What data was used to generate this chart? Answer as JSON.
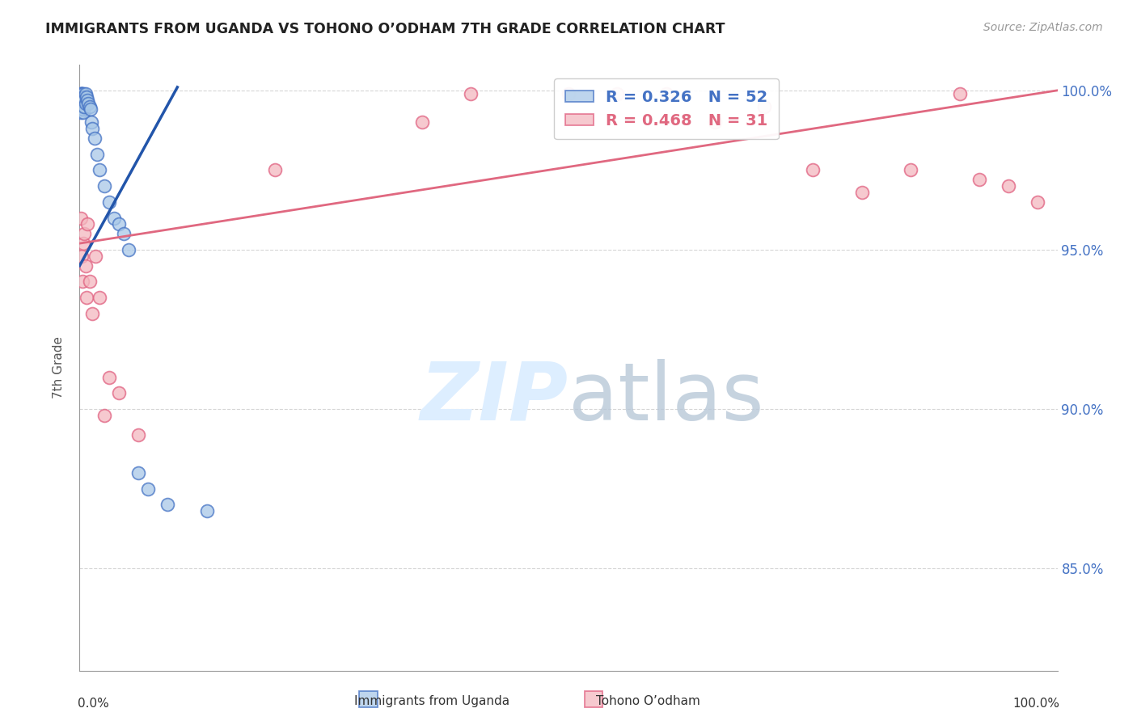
{
  "title": "IMMIGRANTS FROM UGANDA VS TOHONO O’ODHAM 7TH GRADE CORRELATION CHART",
  "source": "Source: ZipAtlas.com",
  "ylabel": "7th Grade",
  "xlim": [
    0.0,
    1.0
  ],
  "ylim": [
    0.818,
    1.008
  ],
  "y_tick_positions": [
    0.85,
    0.9,
    0.95,
    1.0
  ],
  "y_tick_labels": [
    "85.0%",
    "90.0%",
    "95.0%",
    "100.0%"
  ],
  "blue_color": "#a8c8e8",
  "blue_edge_color": "#4472c4",
  "pink_color": "#f4b8c0",
  "pink_edge_color": "#e06080",
  "blue_line_color": "#2255aa",
  "pink_line_color": "#e06880",
  "grid_color": "#cccccc",
  "background_color": "#ffffff",
  "watermark_color": "#ddeeff",
  "legend_blue_label": "R = 0.326   N = 52",
  "legend_pink_label": "R = 0.468   N = 31",
  "legend_blue_text_color": "#4472c4",
  "legend_pink_text_color": "#e06880",
  "bottom_label_blue": "Immigrants from Uganda",
  "bottom_label_pink": "Tohono O’odham",
  "blue_dots_x": [
    0.001,
    0.001,
    0.001,
    0.001,
    0.001,
    0.001,
    0.001,
    0.001,
    0.001,
    0.001,
    0.001,
    0.002,
    0.002,
    0.002,
    0.002,
    0.002,
    0.002,
    0.003,
    0.003,
    0.003,
    0.003,
    0.003,
    0.004,
    0.004,
    0.004,
    0.004,
    0.004,
    0.005,
    0.005,
    0.005,
    0.006,
    0.006,
    0.007,
    0.008,
    0.009,
    0.01,
    0.011,
    0.012,
    0.013,
    0.015,
    0.018,
    0.02,
    0.025,
    0.03,
    0.035,
    0.04,
    0.045,
    0.05,
    0.06,
    0.07,
    0.09,
    0.13
  ],
  "blue_dots_y": [
    0.999,
    0.999,
    0.998,
    0.998,
    0.997,
    0.997,
    0.996,
    0.996,
    0.995,
    0.994,
    0.993,
    0.999,
    0.999,
    0.998,
    0.997,
    0.996,
    0.995,
    0.999,
    0.998,
    0.997,
    0.996,
    0.994,
    0.999,
    0.998,
    0.997,
    0.995,
    0.993,
    0.998,
    0.997,
    0.995,
    0.999,
    0.996,
    0.998,
    0.997,
    0.996,
    0.995,
    0.994,
    0.99,
    0.988,
    0.985,
    0.98,
    0.975,
    0.97,
    0.965,
    0.96,
    0.958,
    0.955,
    0.95,
    0.88,
    0.875,
    0.87,
    0.868
  ],
  "pink_dots_x": [
    0.001,
    0.002,
    0.003,
    0.004,
    0.005,
    0.006,
    0.007,
    0.008,
    0.01,
    0.013,
    0.016,
    0.02,
    0.025,
    0.03,
    0.04,
    0.06,
    0.2,
    0.35,
    0.4,
    0.5,
    0.55,
    0.6,
    0.65,
    0.7,
    0.75,
    0.8,
    0.85,
    0.9,
    0.92,
    0.95,
    0.98
  ],
  "pink_dots_y": [
    0.96,
    0.948,
    0.94,
    0.952,
    0.955,
    0.945,
    0.935,
    0.958,
    0.94,
    0.93,
    0.948,
    0.935,
    0.898,
    0.91,
    0.905,
    0.892,
    0.975,
    0.99,
    0.999,
    0.999,
    0.999,
    0.999,
    0.99,
    0.995,
    0.975,
    0.968,
    0.975,
    0.999,
    0.972,
    0.97,
    0.965
  ],
  "blue_line_x": [
    0.0,
    0.1
  ],
  "blue_line_y": [
    0.945,
    1.001
  ],
  "pink_line_x": [
    0.0,
    1.0
  ],
  "pink_line_y": [
    0.952,
    1.0
  ]
}
